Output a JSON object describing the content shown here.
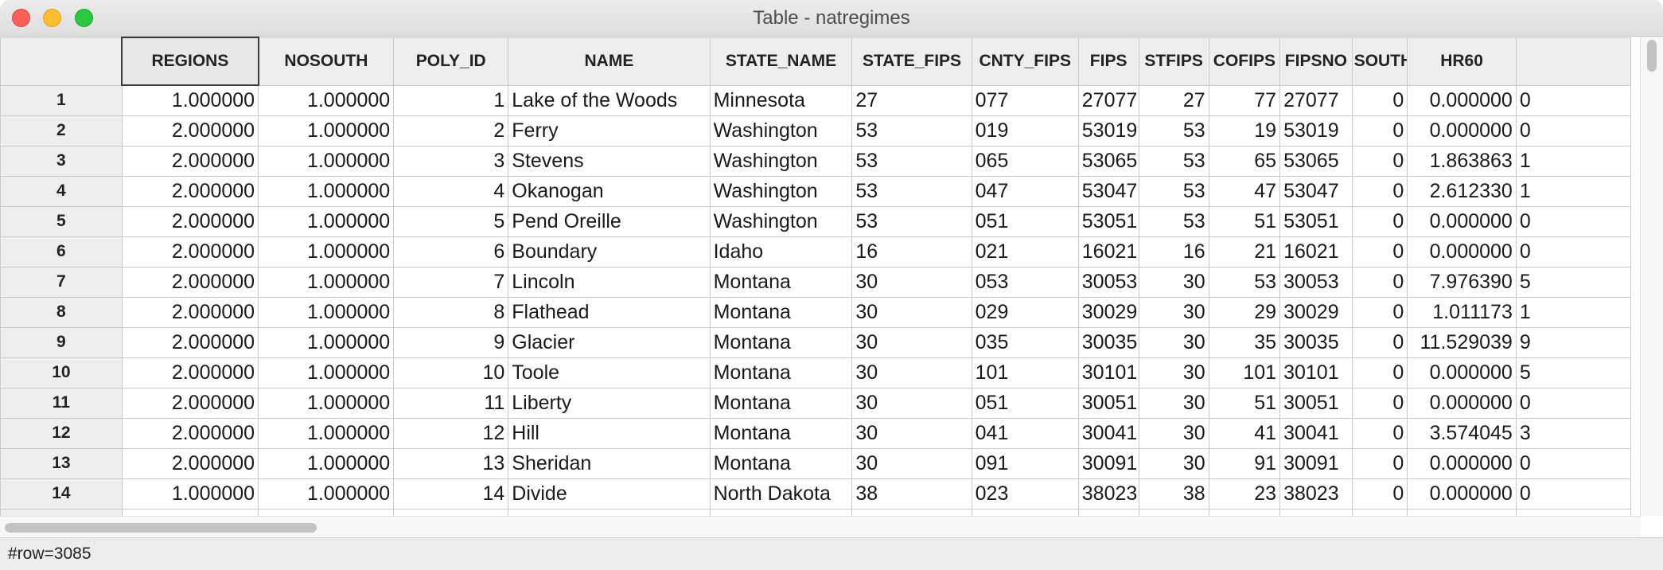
{
  "window": {
    "title": "Table - natregimes"
  },
  "table": {
    "columns": [
      "REGIONS",
      "NOSOUTH",
      "POLY_ID",
      "NAME",
      "STATE_NAME",
      "STATE_FIPS",
      "CNTY_FIPS",
      "FIPS",
      "STFIPS",
      "COFIPS",
      "FIPSNO",
      "SOUTH",
      "HR60",
      ""
    ],
    "rows": [
      {
        "n": "1",
        "cells": [
          "1.000000",
          "1.000000",
          "1",
          "Lake of the Woods",
          "Minnesota",
          "27",
          "077",
          "27077",
          "27",
          "77",
          "27077",
          "0",
          "0.000000",
          "0"
        ]
      },
      {
        "n": "2",
        "cells": [
          "2.000000",
          "1.000000",
          "2",
          "Ferry",
          "Washington",
          "53",
          "019",
          "53019",
          "53",
          "19",
          "53019",
          "0",
          "0.000000",
          "0"
        ]
      },
      {
        "n": "3",
        "cells": [
          "2.000000",
          "1.000000",
          "3",
          "Stevens",
          "Washington",
          "53",
          "065",
          "53065",
          "53",
          "65",
          "53065",
          "0",
          "1.863863",
          "1"
        ]
      },
      {
        "n": "4",
        "cells": [
          "2.000000",
          "1.000000",
          "4",
          "Okanogan",
          "Washington",
          "53",
          "047",
          "53047",
          "53",
          "47",
          "53047",
          "0",
          "2.612330",
          "1"
        ]
      },
      {
        "n": "5",
        "cells": [
          "2.000000",
          "1.000000",
          "5",
          "Pend Oreille",
          "Washington",
          "53",
          "051",
          "53051",
          "53",
          "51",
          "53051",
          "0",
          "0.000000",
          "0"
        ]
      },
      {
        "n": "6",
        "cells": [
          "2.000000",
          "1.000000",
          "6",
          "Boundary",
          "Idaho",
          "16",
          "021",
          "16021",
          "16",
          "21",
          "16021",
          "0",
          "0.000000",
          "0"
        ]
      },
      {
        "n": "7",
        "cells": [
          "2.000000",
          "1.000000",
          "7",
          "Lincoln",
          "Montana",
          "30",
          "053",
          "30053",
          "30",
          "53",
          "30053",
          "0",
          "7.976390",
          "5"
        ]
      },
      {
        "n": "8",
        "cells": [
          "2.000000",
          "1.000000",
          "8",
          "Flathead",
          "Montana",
          "30",
          "029",
          "30029",
          "30",
          "29",
          "30029",
          "0",
          "1.011173",
          "1"
        ]
      },
      {
        "n": "9",
        "cells": [
          "2.000000",
          "1.000000",
          "9",
          "Glacier",
          "Montana",
          "30",
          "035",
          "30035",
          "30",
          "35",
          "30035",
          "0",
          "11.529039",
          "9"
        ]
      },
      {
        "n": "10",
        "cells": [
          "2.000000",
          "1.000000",
          "10",
          "Toole",
          "Montana",
          "30",
          "101",
          "30101",
          "30",
          "101",
          "30101",
          "0",
          "0.000000",
          "5"
        ]
      },
      {
        "n": "11",
        "cells": [
          "2.000000",
          "1.000000",
          "11",
          "Liberty",
          "Montana",
          "30",
          "051",
          "30051",
          "30",
          "51",
          "30051",
          "0",
          "0.000000",
          "0"
        ]
      },
      {
        "n": "12",
        "cells": [
          "2.000000",
          "1.000000",
          "12",
          "Hill",
          "Montana",
          "30",
          "041",
          "30041",
          "30",
          "41",
          "30041",
          "0",
          "3.574045",
          "3"
        ]
      },
      {
        "n": "13",
        "cells": [
          "2.000000",
          "1.000000",
          "13",
          "Sheridan",
          "Montana",
          "30",
          "091",
          "30091",
          "30",
          "91",
          "30091",
          "0",
          "0.000000",
          "0"
        ]
      },
      {
        "n": "14",
        "cells": [
          "1.000000",
          "1.000000",
          "14",
          "Divide",
          "North Dakota",
          "38",
          "023",
          "38023",
          "38",
          "23",
          "38023",
          "0",
          "0.000000",
          "0"
        ]
      },
      {
        "n": "",
        "cells": [
          "",
          "",
          "",
          "",
          "",
          "",
          "",
          "",
          "",
          "",
          "",
          "",
          "",
          ""
        ]
      }
    ]
  },
  "status": {
    "text": "#row=3085"
  }
}
